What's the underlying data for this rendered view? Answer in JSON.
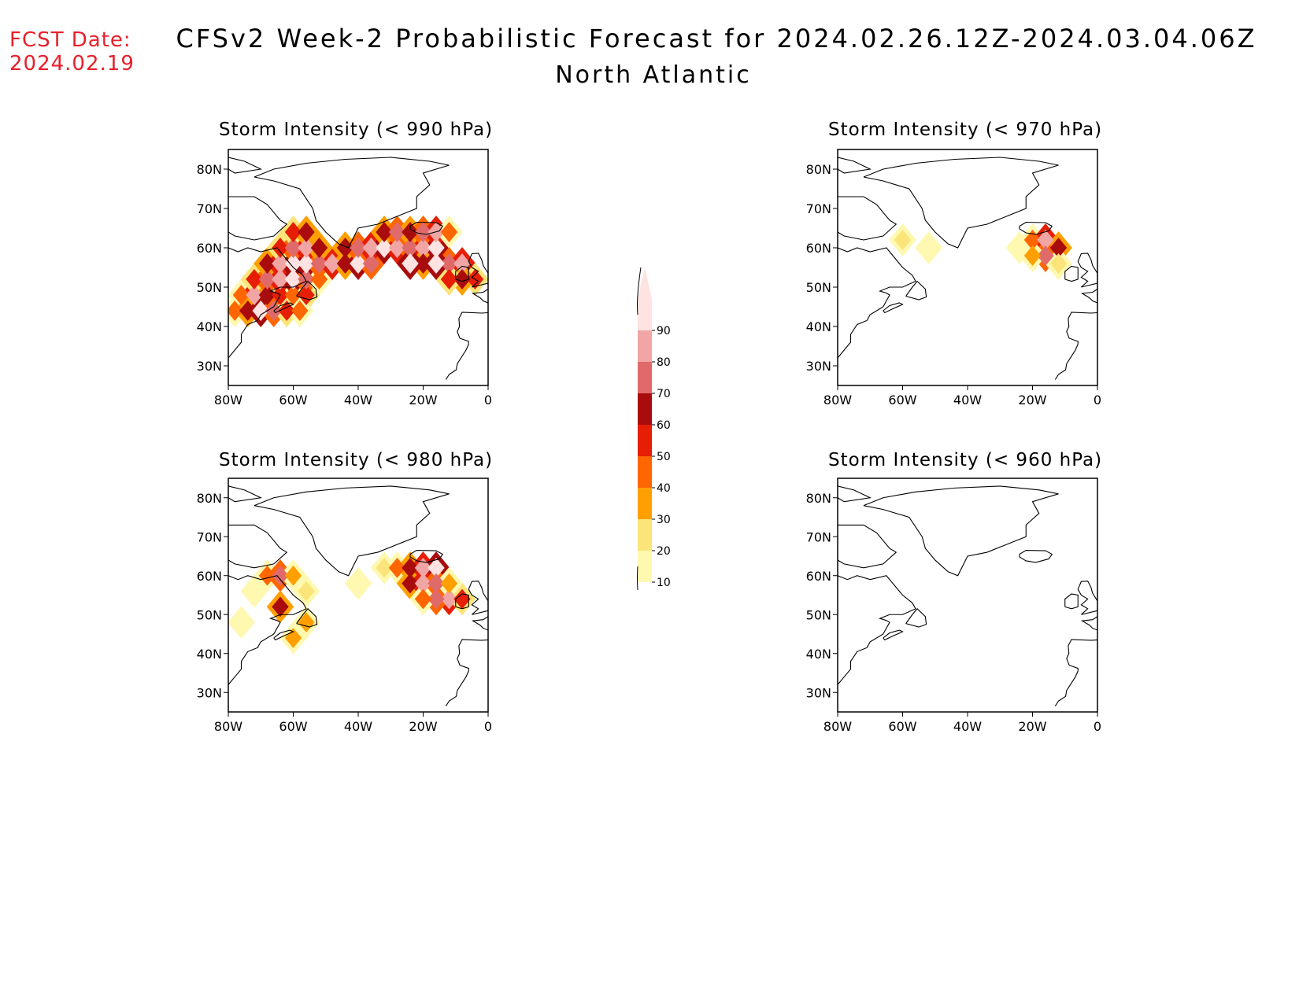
{
  "header": {
    "fcst_label": "FCST Date:",
    "fcst_date": "2024.02.19",
    "title": "CFSv2 Week-2 Probabilistic Forecast for 2024.02.26.12Z-2024.03.04.06Z",
    "region": "North Atlantic"
  },
  "panels": [
    {
      "id": "p990",
      "title": "Storm Intensity (< 990 hPa)"
    },
    {
      "id": "p970",
      "title": "Storm Intensity (< 970 hPa)"
    },
    {
      "id": "p980",
      "title": "Storm Intensity (< 980 hPa)"
    },
    {
      "id": "p960",
      "title": "Storm Intensity (< 960 hPa)"
    }
  ],
  "axes": {
    "lat_ticks": [
      "80N",
      "70N",
      "60N",
      "50N",
      "40N",
      "30N"
    ],
    "lon_ticks": [
      "80W",
      "60W",
      "40W",
      "20W",
      "0"
    ],
    "lat_range": [
      25,
      85
    ],
    "lon_range": [
      -80,
      0
    ]
  },
  "colorbar": {
    "levels": [
      "10",
      "20",
      "30",
      "40",
      "50",
      "60",
      "70",
      "80",
      "90"
    ],
    "colors": [
      "#fff8b0",
      "#fbe57a",
      "#ffa000",
      "#ff6600",
      "#e61e05",
      "#a80c0c",
      "#e06a6a",
      "#f2a5a5",
      "#ffe2e2"
    ]
  },
  "chart_data": {
    "type": "heatmap",
    "x_unit": "longitude (degrees E)",
    "y_unit": "latitude (degrees N)",
    "panels": [
      {
        "id": "p990",
        "cells": [
          [
            -76,
            48,
            40
          ],
          [
            -72,
            48,
            80
          ],
          [
            -68,
            48,
            60
          ],
          [
            -64,
            48,
            50
          ],
          [
            -60,
            48,
            40
          ],
          [
            -56,
            48,
            50
          ],
          [
            -78,
            44,
            40
          ],
          [
            -74,
            44,
            60
          ],
          [
            -70,
            44,
            90
          ],
          [
            -66,
            44,
            70
          ],
          [
            -62,
            44,
            50
          ],
          [
            -58,
            44,
            40
          ],
          [
            -72,
            52,
            50
          ],
          [
            -68,
            52,
            70
          ],
          [
            -64,
            52,
            80
          ],
          [
            -60,
            52,
            90
          ],
          [
            -56,
            52,
            70
          ],
          [
            -52,
            52,
            40
          ],
          [
            -68,
            56,
            60
          ],
          [
            -64,
            56,
            80
          ],
          [
            -60,
            56,
            95
          ],
          [
            -56,
            56,
            90
          ],
          [
            -52,
            56,
            70
          ],
          [
            -48,
            56,
            80
          ],
          [
            -44,
            56,
            60
          ],
          [
            -40,
            56,
            90
          ],
          [
            -36,
            56,
            70
          ],
          [
            -64,
            60,
            50
          ],
          [
            -60,
            60,
            70
          ],
          [
            -56,
            60,
            80
          ],
          [
            -52,
            60,
            60
          ],
          [
            -44,
            60,
            60
          ],
          [
            -40,
            60,
            70
          ],
          [
            -36,
            60,
            80
          ],
          [
            -32,
            60,
            90
          ],
          [
            -28,
            60,
            80
          ],
          [
            -24,
            60,
            70
          ],
          [
            -20,
            60,
            80
          ],
          [
            -16,
            60,
            90
          ],
          [
            -60,
            64,
            50
          ],
          [
            -56,
            64,
            60
          ],
          [
            -32,
            64,
            60
          ],
          [
            -28,
            64,
            70
          ],
          [
            -24,
            64,
            60
          ],
          [
            -20,
            64,
            70
          ],
          [
            -16,
            64,
            80
          ],
          [
            -12,
            64,
            40
          ],
          [
            -12,
            56,
            70
          ],
          [
            -8,
            56,
            80
          ],
          [
            -4,
            52,
            50
          ],
          [
            -8,
            52,
            60
          ],
          [
            -12,
            52,
            50
          ],
          [
            -20,
            56,
            60
          ],
          [
            -24,
            56,
            90
          ],
          [
            -16,
            56,
            90
          ]
        ]
      },
      {
        "id": "p970",
        "cells": [
          [
            -60,
            62,
            20
          ],
          [
            -52,
            60,
            15
          ],
          [
            -20,
            62,
            40
          ],
          [
            -16,
            62,
            80
          ],
          [
            -12,
            60,
            60
          ],
          [
            -16,
            58,
            70
          ],
          [
            -20,
            58,
            30
          ],
          [
            -12,
            56,
            20
          ],
          [
            -24,
            60,
            15
          ]
        ]
      },
      {
        "id": "p980",
        "cells": [
          [
            -72,
            56,
            15
          ],
          [
            -68,
            60,
            40
          ],
          [
            -64,
            60,
            70
          ],
          [
            -60,
            60,
            30
          ],
          [
            -56,
            56,
            20
          ],
          [
            -64,
            52,
            60
          ],
          [
            -56,
            48,
            30
          ],
          [
            -60,
            44,
            30
          ],
          [
            -76,
            48,
            15
          ],
          [
            -40,
            58,
            10
          ],
          [
            -32,
            62,
            20
          ],
          [
            -28,
            62,
            40
          ],
          [
            -24,
            62,
            60
          ],
          [
            -20,
            62,
            80
          ],
          [
            -16,
            62,
            90
          ],
          [
            -24,
            58,
            60
          ],
          [
            -20,
            58,
            80
          ],
          [
            -16,
            58,
            70
          ],
          [
            -12,
            54,
            80
          ],
          [
            -16,
            54,
            70
          ],
          [
            -20,
            54,
            40
          ],
          [
            -8,
            54,
            50
          ],
          [
            -12,
            58,
            30
          ]
        ]
      },
      {
        "id": "p960",
        "cells": []
      }
    ]
  }
}
